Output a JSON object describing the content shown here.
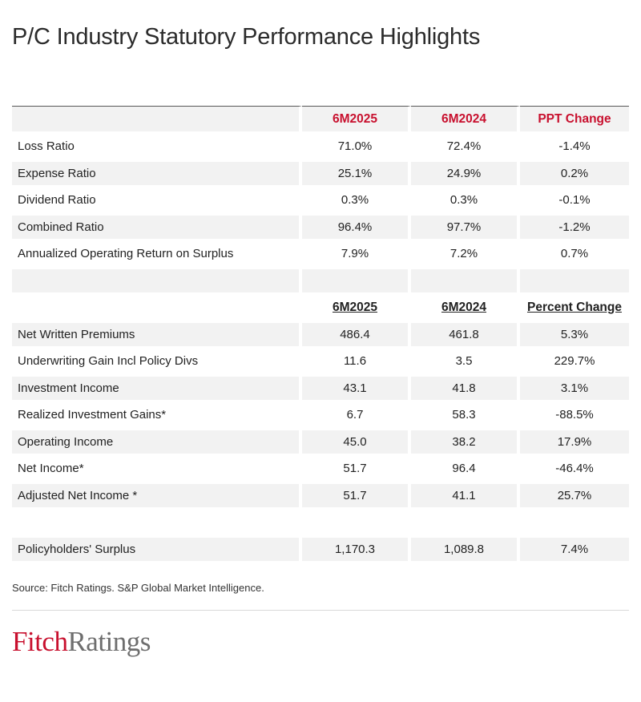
{
  "title": "P/C Industry Statutory Performance Highlights",
  "ratios": {
    "headers": [
      "6M2025",
      "6M2024",
      "PPT Change"
    ],
    "rows": [
      {
        "label": "Loss Ratio",
        "v1": "71.0%",
        "v2": "72.4%",
        "v3": "-1.4%"
      },
      {
        "label": "Expense Ratio",
        "v1": "25.1%",
        "v2": "24.9%",
        "v3": "0.2%"
      },
      {
        "label": "Dividend Ratio",
        "v1": "0.3%",
        "v2": "0.3%",
        "v3": "-0.1%"
      },
      {
        "label": "Combined Ratio",
        "v1": "96.4%",
        "v2": "97.7%",
        "v3": "-1.2%"
      },
      {
        "label": "Annualized Operating Return on Surplus",
        "v1": "7.9%",
        "v2": "7.2%",
        "v3": "0.7%"
      }
    ]
  },
  "amounts": {
    "headers": [
      "6M2025",
      "6M2024",
      "Percent Change"
    ],
    "rows": [
      {
        "label": "Net Written Premiums",
        "v1": "486.4",
        "v2": "461.8",
        "v3": "5.3%"
      },
      {
        "label": "Underwriting Gain Incl Policy Divs",
        "v1": "11.6",
        "v2": "3.5",
        "v3": "229.7%"
      },
      {
        "label": "Investment Income",
        "v1": "43.1",
        "v2": "41.8",
        "v3": "3.1%"
      },
      {
        "label": "Realized Investment Gains*",
        "v1": "6.7",
        "v2": "58.3",
        "v3": "-88.5%"
      },
      {
        "label": "Operating Income",
        "v1": "45.0",
        "v2": "38.2",
        "v3": "17.9%"
      },
      {
        "label": "Net Income*",
        "v1": "51.7",
        "v2": "96.4",
        "v3": "-46.4%"
      },
      {
        "label": "Adjusted Net Income *",
        "v1": "51.7",
        "v2": "41.1",
        "v3": "25.7%"
      }
    ]
  },
  "surplus": {
    "label": "Policyholders' Surplus",
    "v1": "1,170.3",
    "v2": "1,089.8",
    "v3": "7.4%"
  },
  "source": "Source: Fitch Ratings. S&P Global Market Intelligence.",
  "logo": {
    "part1": "Fitch",
    "part2": "Ratings"
  },
  "colors": {
    "accent": "#c8102e",
    "shade": "#f2f2f2"
  }
}
